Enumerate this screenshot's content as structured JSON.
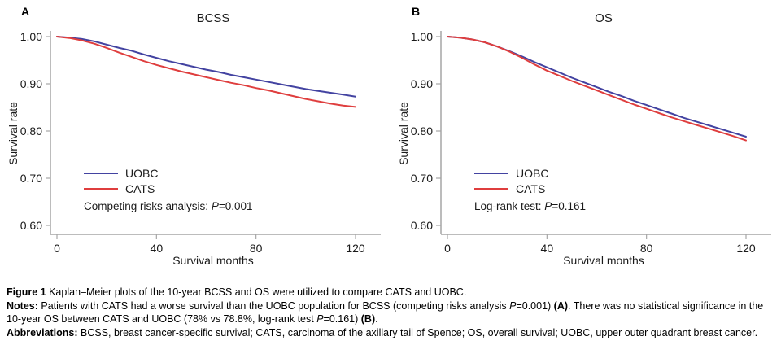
{
  "figure": {
    "panels": [
      {
        "label": "A",
        "title": "BCSS",
        "ylabel": "Survival rate",
        "xlabel": "Survival months",
        "legend": [
          {
            "name": "UOBC",
            "color": "#4343a1"
          },
          {
            "name": "CATS",
            "color": "#df3e3e"
          }
        ],
        "stat_prefix": "Competing risks analysis: ",
        "stat_p": "P",
        "stat_value": "=0.001"
      },
      {
        "label": "B",
        "title": "OS",
        "ylabel": "Survival rate",
        "xlabel": "Survival months",
        "legend": [
          {
            "name": "UOBC",
            "color": "#4343a1"
          },
          {
            "name": "CATS",
            "color": "#df3e3e"
          }
        ],
        "stat_prefix": "Log-rank test: ",
        "stat_p": "P",
        "stat_value": "=0.161"
      }
    ]
  },
  "chart_data": [
    {
      "type": "line",
      "title": "BCSS",
      "xlabel": "Survival months",
      "ylabel": "Survival rate",
      "xlim": [
        0,
        130
      ],
      "ylim": [
        0.6,
        1.0
      ],
      "xticks": [
        0,
        40,
        80,
        120
      ],
      "xtick_labels": [
        "0",
        "40",
        "80",
        "120"
      ],
      "yticks": [
        1.0,
        0.9,
        0.8,
        0.7,
        0.6
      ],
      "ytick_labels": [
        "1.00",
        "0.90",
        "0.80",
        "0.70",
        "0.60"
      ],
      "grid": false,
      "legend_position": "lower-left",
      "annotation": "Competing risks analysis: P=0.001",
      "x": [
        0,
        5,
        10,
        15,
        20,
        25,
        30,
        35,
        40,
        45,
        50,
        55,
        60,
        65,
        70,
        75,
        80,
        85,
        90,
        95,
        100,
        105,
        110,
        115,
        120
      ],
      "series": [
        {
          "name": "UOBC",
          "color": "#4343a1",
          "values": [
            1.0,
            0.998,
            0.995,
            0.99,
            0.983,
            0.976,
            0.97,
            0.962,
            0.955,
            0.948,
            0.942,
            0.936,
            0.93,
            0.925,
            0.919,
            0.914,
            0.909,
            0.904,
            0.899,
            0.894,
            0.889,
            0.885,
            0.881,
            0.877,
            0.873
          ]
        },
        {
          "name": "CATS",
          "color": "#df3e3e",
          "values": [
            1.0,
            0.997,
            0.992,
            0.985,
            0.976,
            0.966,
            0.957,
            0.948,
            0.94,
            0.933,
            0.926,
            0.92,
            0.914,
            0.908,
            0.902,
            0.897,
            0.891,
            0.886,
            0.88,
            0.874,
            0.868,
            0.863,
            0.858,
            0.854,
            0.851
          ]
        }
      ]
    },
    {
      "type": "line",
      "title": "OS",
      "xlabel": "Survival months",
      "ylabel": "Survival rate",
      "xlim": [
        0,
        130
      ],
      "ylim": [
        0.6,
        1.0
      ],
      "xticks": [
        0,
        40,
        80,
        120
      ],
      "xtick_labels": [
        "0",
        "40",
        "80",
        "120"
      ],
      "yticks": [
        1.0,
        0.9,
        0.8,
        0.7,
        0.6
      ],
      "ytick_labels": [
        "1.00",
        "0.90",
        "0.80",
        "0.70",
        "0.60"
      ],
      "grid": false,
      "legend_position": "lower-left",
      "annotation": "Log-rank test: P=0.161",
      "x": [
        0,
        5,
        10,
        15,
        20,
        25,
        30,
        35,
        40,
        45,
        50,
        55,
        60,
        65,
        70,
        75,
        80,
        85,
        90,
        95,
        100,
        105,
        110,
        115,
        120
      ],
      "series": [
        {
          "name": "UOBC",
          "color": "#4343a1",
          "values": [
            1.0,
            0.998,
            0.994,
            0.988,
            0.979,
            0.969,
            0.958,
            0.946,
            0.935,
            0.924,
            0.913,
            0.903,
            0.893,
            0.883,
            0.874,
            0.864,
            0.855,
            0.846,
            0.837,
            0.828,
            0.82,
            0.812,
            0.804,
            0.796,
            0.788
          ]
        },
        {
          "name": "CATS",
          "color": "#df3e3e",
          "values": [
            1.0,
            0.998,
            0.994,
            0.988,
            0.979,
            0.968,
            0.955,
            0.941,
            0.928,
            0.917,
            0.906,
            0.896,
            0.886,
            0.876,
            0.866,
            0.856,
            0.847,
            0.838,
            0.829,
            0.821,
            0.813,
            0.805,
            0.797,
            0.789,
            0.78
          ]
        }
      ]
    }
  ],
  "caption": {
    "paragraphs": [
      {
        "segments": [
          {
            "t": "Figure 1 ",
            "b": true
          },
          {
            "t": "Kaplan–Meier plots of the 10-year BCSS and OS were utilized to compare CATS and UOBC."
          }
        ]
      },
      {
        "segments": [
          {
            "t": "Notes: ",
            "b": true
          },
          {
            "t": "Patients with CATS had a worse survival than the UOBC population for BCSS (competing risks analysis "
          },
          {
            "t": "P",
            "i": true
          },
          {
            "t": "=0.001) "
          },
          {
            "t": "(A)",
            "b": true
          },
          {
            "t": ". There was no statistical significance in the 10-year OS between CATS and UOBC (78% vs 78.8%, log-rank test "
          },
          {
            "t": "P",
            "i": true
          },
          {
            "t": "=0.161) "
          },
          {
            "t": "(B)",
            "b": true
          },
          {
            "t": "."
          }
        ]
      },
      {
        "segments": [
          {
            "t": "Abbreviations: ",
            "b": true
          },
          {
            "t": "BCSS, breast cancer-specific survival; CATS, carcinoma of the axillary tail of Spence; OS, overall survival; UOBC, upper outer quadrant breast cancer."
          }
        ]
      }
    ]
  },
  "colors": {
    "uobc": "#4343a1",
    "cats": "#df3e3e",
    "axis": "#a6a6a6",
    "text": "#1a1a1a"
  }
}
